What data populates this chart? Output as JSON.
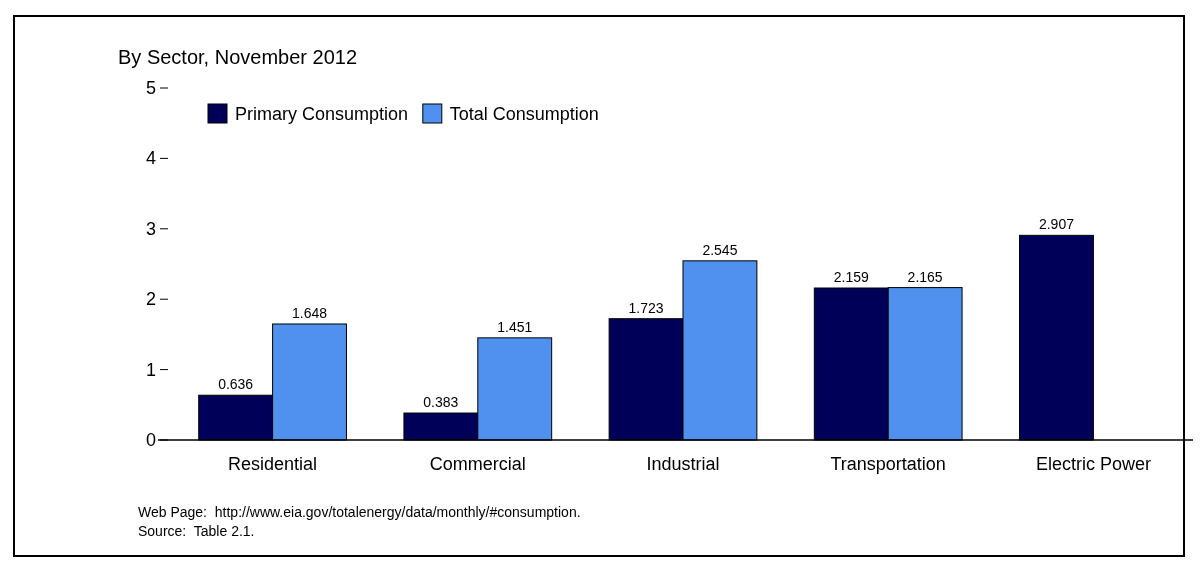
{
  "chart_data": {
    "type": "bar",
    "subtitle": "By Sector, November 2012",
    "categories": [
      "Residential",
      "Commercial",
      "Industrial",
      "Transportation",
      "Electric Power"
    ],
    "series": [
      {
        "name": "Primary Consumption",
        "color": "#000058",
        "values": [
          0.636,
          0.383,
          1.723,
          2.159,
          2.907
        ]
      },
      {
        "name": "Total Consumption",
        "color": "#5090ee",
        "values": [
          1.648,
          1.451,
          2.545,
          2.165,
          null
        ]
      }
    ],
    "ylim": [
      0,
      5
    ],
    "yticks": [
      0,
      1,
      2,
      3,
      4,
      5
    ],
    "grid": false,
    "legend": "top left",
    "data_labels": true,
    "annotations": [
      "Web Page:  http://www.eia.gov/totalenergy/data/monthly/#consumption.",
      "Source:  Table 2.1."
    ]
  }
}
